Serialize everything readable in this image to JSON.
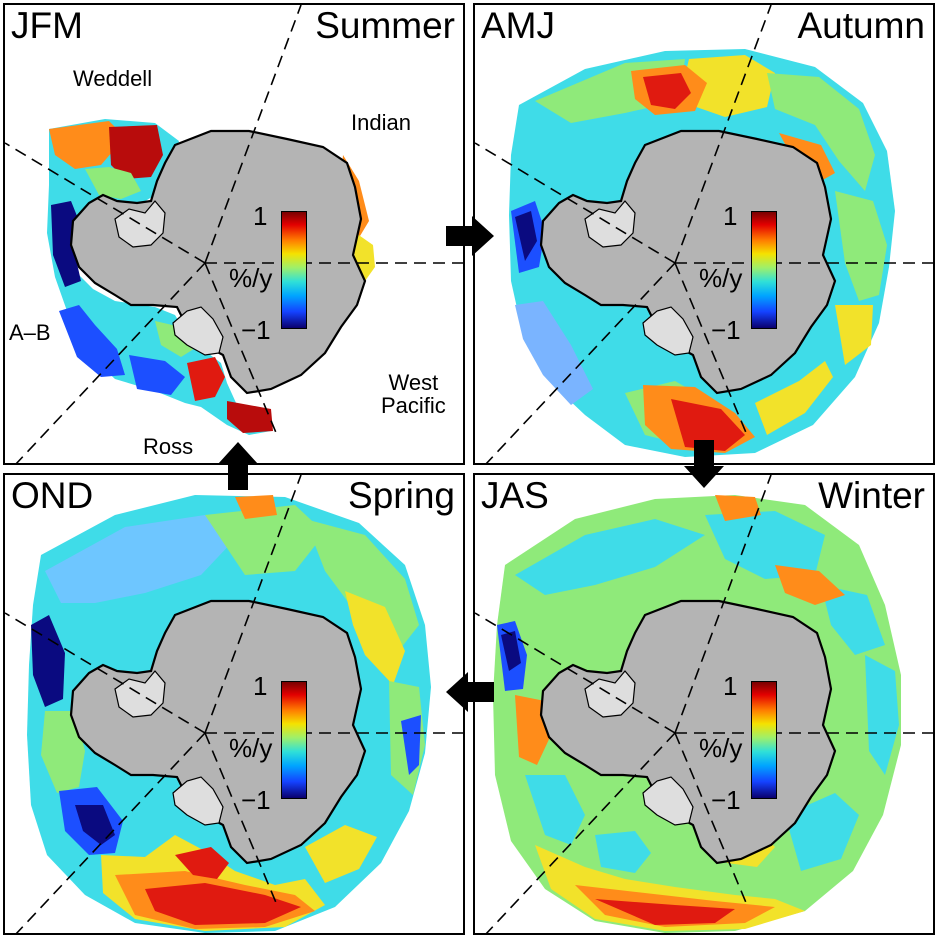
{
  "panels": [
    {
      "id": "jfm",
      "season_code": "JFM",
      "season_name": "Summer"
    },
    {
      "id": "amj",
      "season_code": "AMJ",
      "season_name": "Autumn"
    },
    {
      "id": "ond",
      "season_code": "OND",
      "season_name": "Spring"
    },
    {
      "id": "jas",
      "season_code": "JAS",
      "season_name": "Winter"
    }
  ],
  "regions": {
    "weddell": "Weddell",
    "indian": "Indian",
    "ab": "A–B",
    "west_pacific_1": "West",
    "west_pacific_2": "Pacific",
    "ross": "Ross"
  },
  "colorbar": {
    "max_label": "1",
    "min_label": "−1",
    "unit": "%/y"
  },
  "colors": {
    "land": "#b4b4b4",
    "ice_shelf": "#dedede",
    "red": "#e01a10",
    "orange": "#ff8c1a",
    "yellow": "#f2e22a",
    "green": "#8fea7a",
    "cyan": "#3fdce8",
    "blue": "#1c4fff",
    "navy": "#0a0a80"
  }
}
